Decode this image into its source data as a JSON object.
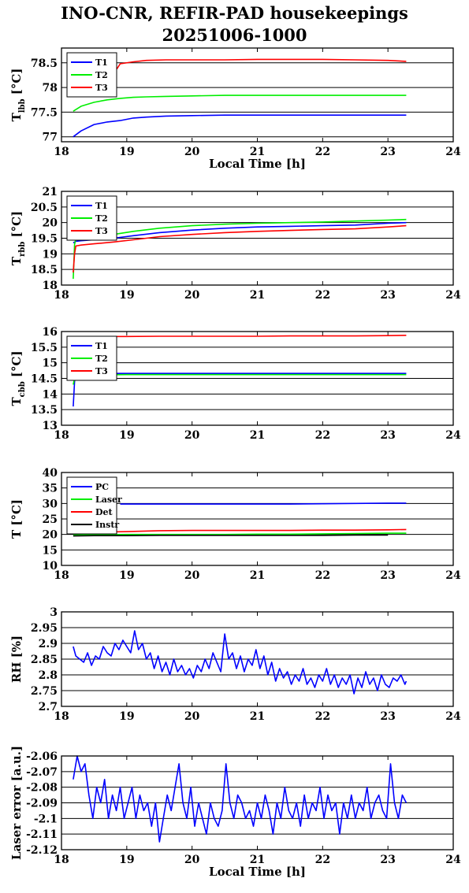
{
  "title": "INO-CNR, REFIR-PAD housekeepings",
  "subtitle": "20251006-1000",
  "chart_data": [
    {
      "type": "line",
      "ylabel": "T_lbb [°C]",
      "ylabel_main": "T",
      "ylabel_sub": "lbb",
      "ylabel_unit": "[°C]",
      "xlabel": "Local Time [h]",
      "xlim": [
        18,
        24
      ],
      "ylim": [
        76.9,
        78.8
      ],
      "yticks": [
        77,
        77.5,
        78,
        78.5
      ],
      "ytick_labels": [
        "77",
        "77.5",
        "78",
        "78.5"
      ],
      "grid": "horizontal",
      "legend": "top-left",
      "series": [
        {
          "name": "T1",
          "color": "#0000ff",
          "x": [
            18.18,
            18.3,
            18.5,
            18.7,
            18.9,
            19.1,
            19.3,
            19.6,
            20,
            20.5,
            21,
            21.5,
            22,
            22.5,
            23,
            23.28
          ],
          "y": [
            77.0,
            77.12,
            77.25,
            77.3,
            77.33,
            77.38,
            77.4,
            77.42,
            77.43,
            77.44,
            77.44,
            77.44,
            77.44,
            77.44,
            77.44,
            77.44
          ]
        },
        {
          "name": "T2",
          "color": "#00ee00",
          "x": [
            18.18,
            18.3,
            18.5,
            18.7,
            18.9,
            19.1,
            19.3,
            19.6,
            20,
            20.5,
            21,
            21.5,
            22,
            22.5,
            23,
            23.28
          ],
          "y": [
            77.52,
            77.62,
            77.7,
            77.75,
            77.78,
            77.8,
            77.81,
            77.82,
            77.83,
            77.84,
            77.84,
            77.84,
            77.84,
            77.84,
            77.84,
            77.84
          ]
        },
        {
          "name": "T3",
          "color": "#ff0000",
          "x": [
            18.18,
            18.3,
            18.5,
            18.7,
            18.85,
            18.9,
            19.1,
            19.3,
            19.6,
            20,
            20.5,
            21,
            21.5,
            22,
            22.5,
            23,
            23.28
          ],
          "y": [
            78.5,
            78.52,
            78.53,
            78.54,
            78.38,
            78.48,
            78.52,
            78.55,
            78.56,
            78.56,
            78.56,
            78.57,
            78.57,
            78.57,
            78.56,
            78.55,
            78.53
          ]
        }
      ]
    },
    {
      "type": "line",
      "ylabel": "T_rbb [°C]",
      "ylabel_main": "T",
      "ylabel_sub": "rbb",
      "ylabel_unit": "[°C]",
      "xlabel": "",
      "xlim": [
        18,
        24
      ],
      "ylim": [
        18,
        21
      ],
      "yticks": [
        18,
        18.5,
        19,
        19.5,
        20,
        20.5,
        21
      ],
      "ytick_labels": [
        "18",
        "18.5",
        "19",
        "19.5",
        "20",
        "20.5",
        "21"
      ],
      "grid": "horizontal",
      "legend": "top-left",
      "series": [
        {
          "name": "T1",
          "color": "#0000ff",
          "x": [
            18.18,
            18.22,
            18.3,
            18.5,
            18.8,
            19.1,
            19.5,
            20,
            20.5,
            21,
            21.5,
            22,
            22.5,
            23,
            23.28
          ],
          "y": [
            19.35,
            19.4,
            19.42,
            19.45,
            19.5,
            19.58,
            19.68,
            19.76,
            19.82,
            19.86,
            19.88,
            19.9,
            19.92,
            19.98,
            20.0
          ]
        },
        {
          "name": "T2",
          "color": "#00ee00",
          "x": [
            18.18,
            18.2,
            18.22,
            18.3,
            18.5,
            18.8,
            19.1,
            19.5,
            20,
            20.5,
            21,
            21.5,
            22,
            22.5,
            23,
            23.28
          ],
          "y": [
            18.2,
            19.3,
            19.48,
            19.5,
            19.55,
            19.62,
            19.72,
            19.82,
            19.9,
            19.95,
            19.98,
            20.0,
            20.02,
            20.05,
            20.08,
            20.1
          ]
        },
        {
          "name": "T3",
          "color": "#ff0000",
          "x": [
            18.18,
            18.2,
            18.22,
            18.3,
            18.5,
            18.8,
            19.1,
            19.5,
            20,
            20.5,
            21,
            21.5,
            22,
            22.5,
            23,
            23.28
          ],
          "y": [
            18.4,
            19.0,
            19.25,
            19.28,
            19.32,
            19.38,
            19.45,
            19.55,
            19.62,
            19.68,
            19.72,
            19.75,
            19.78,
            19.8,
            19.86,
            19.9
          ]
        }
      ]
    },
    {
      "type": "line",
      "ylabel": "T_cbb [°C]",
      "ylabel_main": "T",
      "ylabel_sub": "cbb",
      "ylabel_unit": "[°C]",
      "xlabel": "",
      "xlim": [
        18,
        24
      ],
      "ylim": [
        13,
        16
      ],
      "yticks": [
        13,
        13.5,
        14,
        14.5,
        15,
        15.5,
        16
      ],
      "ytick_labels": [
        "13",
        "13.5",
        "14",
        "14.5",
        "15",
        "15.5",
        "16"
      ],
      "grid": "horizontal",
      "legend": "top-left",
      "series": [
        {
          "name": "T1",
          "color": "#0000ff",
          "x": [
            18.18,
            18.2,
            18.22,
            18.3,
            18.6,
            19,
            19.5,
            20,
            20.5,
            21,
            21.5,
            22,
            22.5,
            23,
            23.28
          ],
          "y": [
            13.6,
            14.4,
            14.62,
            14.65,
            14.66,
            14.66,
            14.66,
            14.66,
            14.66,
            14.66,
            14.66,
            14.66,
            14.66,
            14.66,
            14.66
          ]
        },
        {
          "name": "T2",
          "color": "#00ee00",
          "x": [
            18.18,
            18.2,
            18.22,
            18.3,
            18.6,
            19,
            19.5,
            20,
            20.5,
            21,
            21.5,
            22,
            22.5,
            23,
            23.28
          ],
          "y": [
            14.3,
            14.5,
            14.58,
            14.6,
            14.61,
            14.62,
            14.62,
            14.62,
            14.62,
            14.62,
            14.62,
            14.62,
            14.62,
            14.62,
            14.62
          ]
        },
        {
          "name": "T3",
          "color": "#ff0000",
          "x": [
            18.18,
            18.22,
            18.3,
            18.6,
            19,
            19.5,
            20,
            20.5,
            21,
            21.5,
            22,
            22.5,
            23,
            23.28
          ],
          "y": [
            15.82,
            15.84,
            15.84,
            15.84,
            15.84,
            15.85,
            15.85,
            15.85,
            15.85,
            15.86,
            15.86,
            15.86,
            15.87,
            15.88
          ]
        }
      ]
    },
    {
      "type": "line",
      "ylabel": "T [°C]",
      "ylabel_main": "T",
      "ylabel_sub": "",
      "ylabel_unit": "[°C]",
      "xlabel": "",
      "xlim": [
        18,
        24
      ],
      "ylim": [
        10,
        40
      ],
      "yticks": [
        10,
        15,
        20,
        25,
        30,
        35,
        40
      ],
      "ytick_labels": [
        "10",
        "15",
        "20",
        "25",
        "30",
        "35",
        "40"
      ],
      "grid": "horizontal",
      "legend": "top-left",
      "series": [
        {
          "name": "PC",
          "color": "#0000ff",
          "x": [
            18.9,
            19.5,
            20,
            20.5,
            21,
            21.5,
            22,
            22.5,
            23,
            23.28
          ],
          "y": [
            29.8,
            29.8,
            29.8,
            29.8,
            29.8,
            29.8,
            29.9,
            30.0,
            30.1,
            30.1
          ]
        },
        {
          "name": "Laser",
          "color": "#00ee00",
          "x": [
            18.18,
            18.5,
            19,
            19.5,
            20,
            20.5,
            21,
            21.5,
            22,
            22.5,
            23,
            23.28
          ],
          "y": [
            19.8,
            19.9,
            20.0,
            20.0,
            20.0,
            20.0,
            20.1,
            20.1,
            20.2,
            20.3,
            20.4,
            20.4
          ]
        },
        {
          "name": "Det",
          "color": "#ff0000",
          "x": [
            18.18,
            18.5,
            19,
            19.5,
            20,
            20.5,
            21,
            21.5,
            22,
            22.5,
            23,
            23.28
          ],
          "y": [
            20.3,
            20.7,
            20.9,
            21.2,
            21.3,
            21.3,
            21.3,
            21.3,
            21.4,
            21.4,
            21.5,
            21.6
          ]
        },
        {
          "name": "Instr",
          "color": "#000000",
          "x": [
            18.18,
            18.5,
            19,
            19.5,
            20,
            20.5,
            21,
            21.5,
            22,
            22.5,
            23
          ],
          "y": [
            19.5,
            19.6,
            19.6,
            19.7,
            19.7,
            19.7,
            19.7,
            19.7,
            19.7,
            19.8,
            19.8
          ]
        }
      ]
    },
    {
      "type": "line",
      "ylabel": "RH [%]",
      "ylabel_main": "RH",
      "ylabel_sub": "",
      "ylabel_unit": "[%]",
      "xlabel": "",
      "xlim": [
        18,
        24
      ],
      "ylim": [
        2.7,
        3
      ],
      "yticks": [
        2.7,
        2.75,
        2.8,
        2.85,
        2.9,
        2.95,
        3
      ],
      "ytick_labels": [
        "2.7",
        "2.75",
        "2.8",
        "2.85",
        "2.9",
        "2.95",
        "3"
      ],
      "grid": "horizontal",
      "legend": "none",
      "series": [
        {
          "name": "",
          "color": "#0000ff",
          "x": [
            18.18,
            18.22,
            18.28,
            18.34,
            18.4,
            18.46,
            18.52,
            18.58,
            18.64,
            18.7,
            18.76,
            18.82,
            18.88,
            18.94,
            19.0,
            19.06,
            19.12,
            19.18,
            19.24,
            19.3,
            19.36,
            19.42,
            19.48,
            19.54,
            19.6,
            19.66,
            19.72,
            19.78,
            19.84,
            19.9,
            19.96,
            20.02,
            20.08,
            20.14,
            20.2,
            20.26,
            20.32,
            20.38,
            20.44,
            20.5,
            20.56,
            20.62,
            20.68,
            20.74,
            20.8,
            20.86,
            20.92,
            20.98,
            21.04,
            21.1,
            21.16,
            21.22,
            21.28,
            21.34,
            21.4,
            21.46,
            21.52,
            21.58,
            21.64,
            21.7,
            21.76,
            21.82,
            21.88,
            21.94,
            22.0,
            22.06,
            22.12,
            22.18,
            22.24,
            22.3,
            22.36,
            22.42,
            22.48,
            22.54,
            22.6,
            22.66,
            22.72,
            22.78,
            22.84,
            22.9,
            22.96,
            23.02,
            23.08,
            23.14,
            23.2,
            23.26,
            23.28
          ],
          "y": [
            2.89,
            2.86,
            2.85,
            2.84,
            2.87,
            2.83,
            2.86,
            2.85,
            2.89,
            2.87,
            2.86,
            2.9,
            2.88,
            2.91,
            2.89,
            2.87,
            2.94,
            2.88,
            2.9,
            2.85,
            2.87,
            2.82,
            2.86,
            2.81,
            2.84,
            2.8,
            2.85,
            2.81,
            2.83,
            2.8,
            2.82,
            2.79,
            2.83,
            2.81,
            2.85,
            2.82,
            2.87,
            2.84,
            2.81,
            2.93,
            2.85,
            2.87,
            2.82,
            2.86,
            2.81,
            2.85,
            2.83,
            2.88,
            2.82,
            2.86,
            2.8,
            2.84,
            2.78,
            2.82,
            2.79,
            2.81,
            2.77,
            2.8,
            2.78,
            2.82,
            2.77,
            2.79,
            2.76,
            2.8,
            2.78,
            2.82,
            2.77,
            2.8,
            2.76,
            2.79,
            2.77,
            2.8,
            2.74,
            2.79,
            2.76,
            2.81,
            2.77,
            2.79,
            2.75,
            2.8,
            2.77,
            2.76,
            2.79,
            2.78,
            2.8,
            2.77,
            2.78
          ]
        }
      ]
    },
    {
      "type": "line",
      "ylabel": "Laser error [a.u.]",
      "ylabel_main": "Laser error",
      "ylabel_sub": "",
      "ylabel_unit": "[a.u.]",
      "xlabel": "Local Time [h]",
      "xlim": [
        18,
        24
      ],
      "ylim": [
        -2.12,
        -2.06
      ],
      "yticks": [
        -2.06,
        -2.07,
        -2.08,
        -2.09,
        -2.1,
        -2.11,
        -2.12
      ],
      "ytick_labels": [
        "-2.06",
        "-2.07",
        "-2.08",
        "-2.09",
        "-2.1",
        "-2.11",
        "-2.12"
      ],
      "grid": "horizontal",
      "legend": "none",
      "series": [
        {
          "name": "",
          "color": "#0000ff",
          "x": [
            18.18,
            18.24,
            18.3,
            18.36,
            18.42,
            18.48,
            18.54,
            18.6,
            18.66,
            18.72,
            18.78,
            18.84,
            18.9,
            18.96,
            19.02,
            19.08,
            19.14,
            19.2,
            19.26,
            19.32,
            19.38,
            19.44,
            19.5,
            19.56,
            19.62,
            19.68,
            19.74,
            19.8,
            19.86,
            19.92,
            19.98,
            20.04,
            20.1,
            20.16,
            20.22,
            20.28,
            20.34,
            20.4,
            20.46,
            20.52,
            20.58,
            20.64,
            20.7,
            20.76,
            20.82,
            20.88,
            20.94,
            21.0,
            21.06,
            21.12,
            21.18,
            21.24,
            21.3,
            21.36,
            21.42,
            21.48,
            21.54,
            21.6,
            21.66,
            21.72,
            21.78,
            21.84,
            21.9,
            21.96,
            22.02,
            22.08,
            22.14,
            22.2,
            22.26,
            22.32,
            22.38,
            22.44,
            22.5,
            22.56,
            22.62,
            22.68,
            22.74,
            22.8,
            22.86,
            22.92,
            22.98,
            23.04,
            23.1,
            23.16,
            23.22,
            23.28
          ],
          "y": [
            -2.075,
            -2.06,
            -2.07,
            -2.065,
            -2.085,
            -2.1,
            -2.08,
            -2.09,
            -2.075,
            -2.1,
            -2.085,
            -2.095,
            -2.08,
            -2.1,
            -2.09,
            -2.08,
            -2.1,
            -2.085,
            -2.095,
            -2.09,
            -2.105,
            -2.09,
            -2.115,
            -2.1,
            -2.085,
            -2.095,
            -2.08,
            -2.065,
            -2.09,
            -2.1,
            -2.08,
            -2.105,
            -2.09,
            -2.1,
            -2.11,
            -2.09,
            -2.1,
            -2.105,
            -2.095,
            -2.065,
            -2.09,
            -2.1,
            -2.085,
            -2.09,
            -2.1,
            -2.095,
            -2.105,
            -2.09,
            -2.1,
            -2.085,
            -2.095,
            -2.11,
            -2.09,
            -2.1,
            -2.08,
            -2.095,
            -2.1,
            -2.09,
            -2.105,
            -2.085,
            -2.1,
            -2.09,
            -2.095,
            -2.08,
            -2.1,
            -2.085,
            -2.095,
            -2.09,
            -2.11,
            -2.09,
            -2.1,
            -2.085,
            -2.1,
            -2.09,
            -2.095,
            -2.08,
            -2.1,
            -2.09,
            -2.085,
            -2.095,
            -2.1,
            -2.065,
            -2.09,
            -2.1,
            -2.085,
            -2.09
          ]
        }
      ]
    }
  ]
}
